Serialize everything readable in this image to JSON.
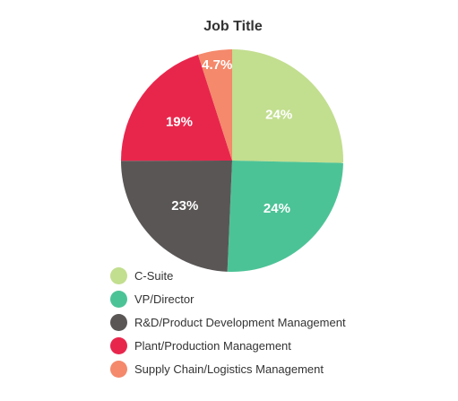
{
  "chart_data": {
    "type": "pie",
    "title": "Job Title",
    "categories": [
      "C-Suite",
      "VP/Director",
      "R&D/Product Development Management",
      "Plant/Production Management",
      "Supply Chain/Logistics Management"
    ],
    "values": [
      24,
      24,
      23,
      19,
      4.7
    ],
    "labels": [
      "24%",
      "24%",
      "23%",
      "19%",
      "4.7%"
    ],
    "colors": [
      "#c2de8f",
      "#4cc397",
      "#5a5656",
      "#e8264c",
      "#f4896b"
    ],
    "legend_position": "bottom-left"
  }
}
